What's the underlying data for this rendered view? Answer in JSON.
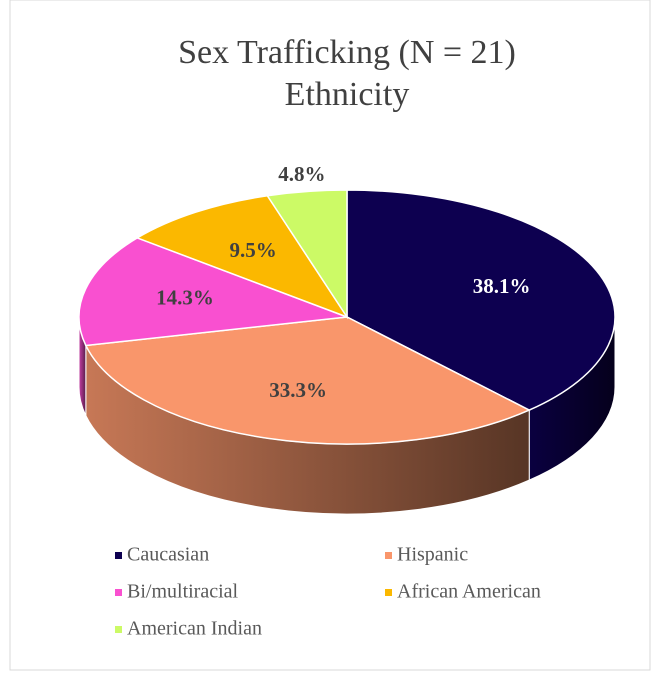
{
  "chart_data": {
    "type": "pie3d",
    "title": "Sex Trafficking (N = 21)",
    "subtitle": "Ethnicity",
    "categories": [
      "Caucasian",
      "Hispanic",
      "Bi/multiracial",
      "African American",
      "American Indian"
    ],
    "values": [
      38.1,
      33.3,
      14.3,
      9.5,
      4.8
    ],
    "value_labels": [
      "38.1%",
      "33.3%",
      "14.3%",
      "9.5%",
      "4.8%"
    ],
    "colors": [
      "#0d0050",
      "#f9966b",
      "#f950d0",
      "#fbb800",
      "#ccfa66"
    ],
    "legend": "bottom"
  }
}
